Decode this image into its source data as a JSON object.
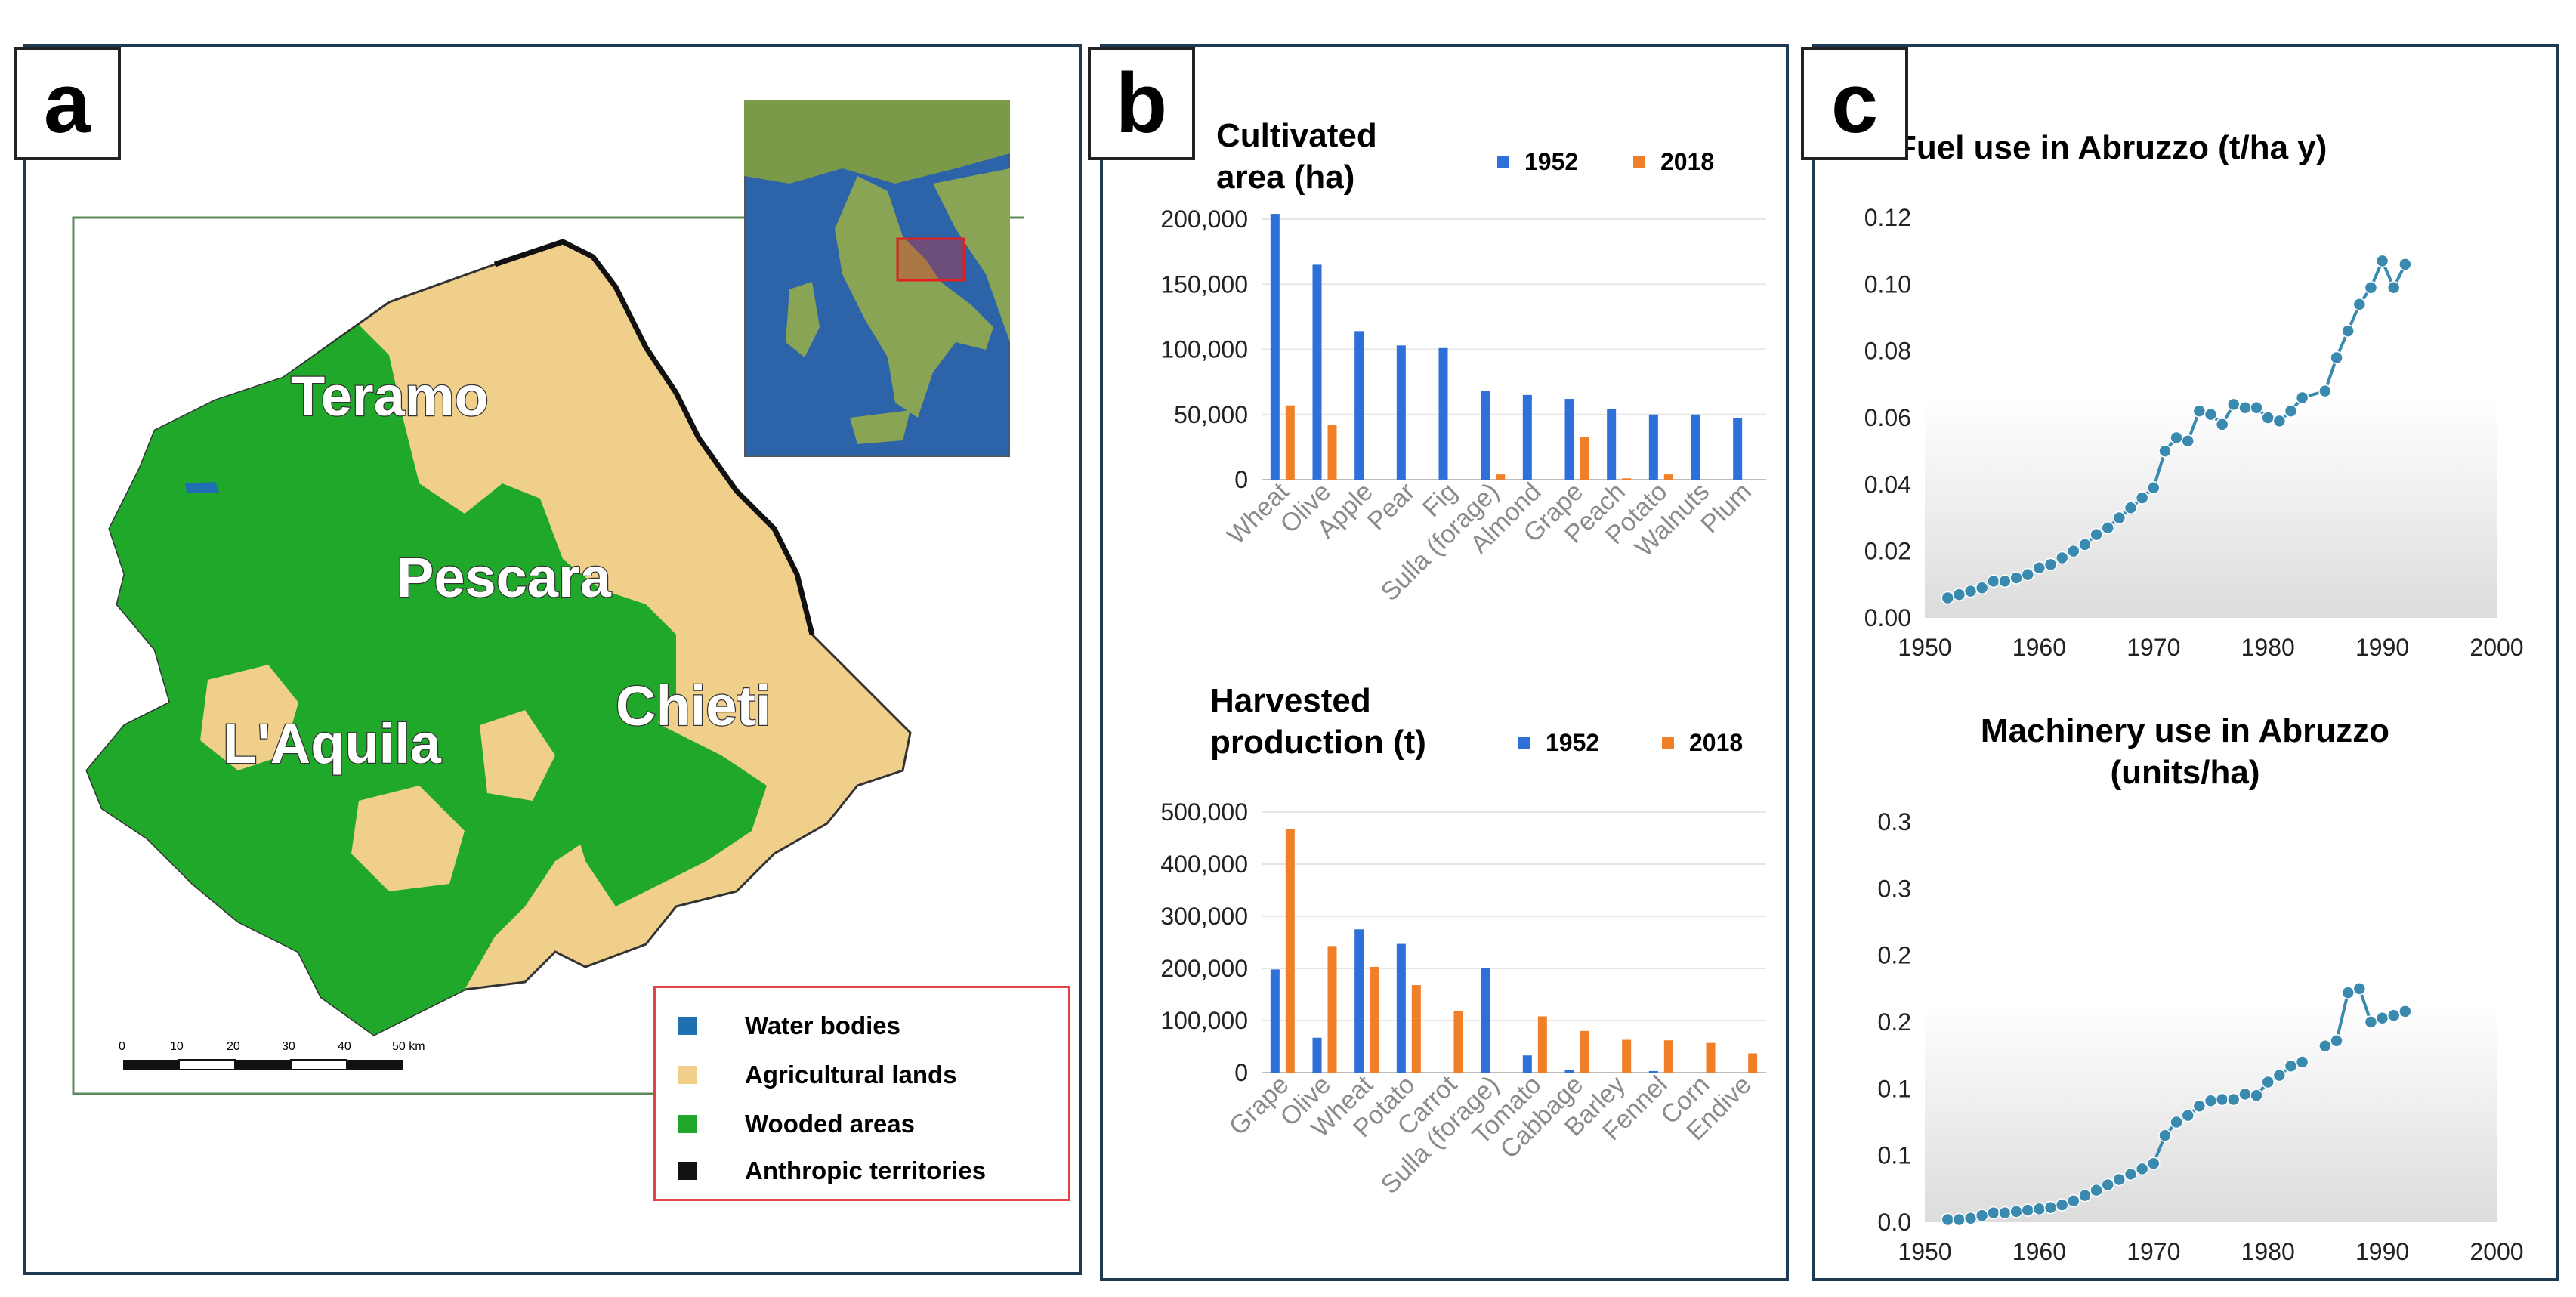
{
  "panels": {
    "a": {
      "label": "a",
      "cities": [
        "Teramo",
        "Pescara",
        "L'Aquila",
        "Chieti"
      ],
      "scale_ticks": [
        "0",
        "10",
        "20",
        "30",
        "40",
        "50 km"
      ],
      "legend": [
        {
          "label": "Water bodies",
          "color": "#1f6fb2"
        },
        {
          "label": "Agricultural lands",
          "color": "#f0cf8a"
        },
        {
          "label": "Wooded areas",
          "color": "#1fa82a"
        },
        {
          "label": "Anthropic territories",
          "color": "#111111"
        }
      ]
    },
    "b": {
      "label": "b",
      "top_title": [
        "Cultivated",
        "area (ha)"
      ],
      "bottom_title": [
        "Harvested",
        "production (t)"
      ],
      "series_labels": [
        "1952",
        "2018"
      ],
      "colors": {
        "s1952": "#2e6fd8",
        "s2018": "#f07f2a"
      }
    },
    "c": {
      "label": "c",
      "top_title": "Fuel use in Abruzzo  (t/ha y)",
      "bottom_title": [
        "Machinery use in Abruzzo",
        "(units/ha)"
      ],
      "line_color": "#3a8ab0"
    }
  },
  "chart_data": [
    {
      "type": "bar",
      "title": "Cultivated area (ha)",
      "categories": [
        "Wheat",
        "Olive",
        "Apple",
        "Pear",
        "Fig",
        "Sulla (forage)",
        "Almond",
        "Grape",
        "Peach",
        "Potato",
        "Walnuts",
        "Plum"
      ],
      "series": [
        {
          "name": "1952",
          "values": [
            204000,
            165000,
            114000,
            103000,
            101000,
            68000,
            65000,
            62000,
            54000,
            50000,
            50000,
            47000
          ]
        },
        {
          "name": "2018",
          "values": [
            57000,
            42000,
            0,
            0,
            0,
            4000,
            0,
            33000,
            1000,
            4000,
            0,
            0
          ]
        }
      ],
      "ylim": [
        0,
        200000
      ],
      "yticks": [
        "0",
        "50,000",
        "100,000",
        "150,000",
        "200,000"
      ],
      "ytick_values": [
        0,
        50000,
        100000,
        150000,
        200000
      ],
      "legend": "top-right"
    },
    {
      "type": "bar",
      "title": "Harvested production (t)",
      "categories": [
        "Grape",
        "Olive",
        "Wheat",
        "Potato",
        "Carrot",
        "Sulla (forage)",
        "Tomato",
        "Cabbage",
        "Barley",
        "Fennel",
        "Corn",
        "Endive"
      ],
      "series": [
        {
          "name": "1952",
          "values": [
            198000,
            67000,
            275000,
            247000,
            0,
            200000,
            33000,
            5000,
            0,
            3000,
            0,
            0
          ]
        },
        {
          "name": "2018",
          "values": [
            468000,
            243000,
            203000,
            168000,
            118000,
            0,
            108000,
            80000,
            63000,
            62000,
            57000,
            37000
          ]
        }
      ],
      "ylim": [
        0,
        500000
      ],
      "yticks": [
        "0",
        "100,000",
        "200,000",
        "300,000",
        "400,000",
        "500,000"
      ],
      "ytick_values": [
        0,
        100000,
        200000,
        300000,
        400000,
        500000
      ],
      "legend": "top-right"
    },
    {
      "type": "line",
      "title": "Fuel use in Abruzzo  (t/ha y)",
      "xlim": [
        1950,
        2000
      ],
      "ylim": [
        0,
        0.12
      ],
      "xticks": [
        "1950",
        "1960",
        "1970",
        "1980",
        "1990",
        "2000"
      ],
      "xtick_values": [
        1950,
        1960,
        1970,
        1980,
        1990,
        2000
      ],
      "yticks": [
        "0.00",
        "0.02",
        "0.04",
        "0.06",
        "0.08",
        "0.10",
        "0.12"
      ],
      "ytick_values": [
        0,
        0.02,
        0.04,
        0.06,
        0.08,
        0.1,
        0.12
      ],
      "series": [
        {
          "name": "Fuel use",
          "segments": [
            {
              "x": [
                1952,
                1953,
                1954,
                1955,
                1956,
                1957,
                1958,
                1959,
                1960,
                1961,
                1962,
                1963,
                1964,
                1965,
                1966,
                1967,
                1968,
                1969,
                1970,
                1971,
                1972,
                1973,
                1974,
                1975,
                1976,
                1977,
                1978,
                1979,
                1980,
                1981,
                1982
              ],
              "y": [
                0.006,
                0.007,
                0.008,
                0.009,
                0.011,
                0.011,
                0.012,
                0.013,
                0.015,
                0.016,
                0.018,
                0.02,
                0.022,
                0.025,
                0.027,
                0.03,
                0.033,
                0.036,
                0.039,
                0.05,
                0.054,
                0.053,
                0.062,
                0.061,
                0.058,
                0.064,
                0.063,
                0.063,
                0.06,
                0.059,
                0.062
              ]
            },
            {
              "x": [
                1982,
                1983,
                1985,
                1986,
                1987,
                1988,
                1989,
                1990,
                1991,
                1992
              ],
              "y": [
                0.062,
                0.066,
                0.068,
                0.078,
                0.086,
                0.094,
                0.099,
                0.107,
                0.099,
                0.106
              ]
            }
          ]
        }
      ]
    },
    {
      "type": "line",
      "title": "Machinery use in Abruzzo (units/ha)",
      "xlim": [
        1950,
        2000
      ],
      "ylim": [
        0,
        0.3
      ],
      "xticks": [
        "1950",
        "1960",
        "1970",
        "1980",
        "1990",
        "2000"
      ],
      "xtick_values": [
        1950,
        1960,
        1970,
        1980,
        1990,
        2000
      ],
      "yticks": [
        "0.0",
        "0.1",
        "0.1",
        "0.2",
        "0.2",
        "0.3",
        "0.3"
      ],
      "ytick_values": [
        0,
        0.05,
        0.1,
        0.15,
        0.2,
        0.25,
        0.3
      ],
      "series": [
        {
          "name": "Machinery use",
          "segments": [
            {
              "x": [
                1952,
                1953,
                1954,
                1955,
                1956,
                1957,
                1958,
                1959,
                1960,
                1961,
                1962,
                1963,
                1964,
                1965,
                1966,
                1967,
                1968,
                1969,
                1970,
                1971,
                1972,
                1973,
                1974,
                1975,
                1976,
                1977,
                1978,
                1979,
                1980,
                1981,
                1982,
                1983
              ],
              "y": [
                0.002,
                0.002,
                0.003,
                0.005,
                0.007,
                0.007,
                0.008,
                0.009,
                0.01,
                0.011,
                0.013,
                0.016,
                0.02,
                0.024,
                0.028,
                0.032,
                0.036,
                0.04,
                0.044,
                0.065,
                0.075,
                0.08,
                0.087,
                0.091,
                0.092,
                0.092,
                0.096,
                0.095,
                0.105,
                0.11,
                0.117,
                0.12
              ]
            },
            {
              "x": [
                1985,
                1986,
                1987,
                1988,
                1989,
                1990,
                1991,
                1992
              ],
              "y": [
                0.132,
                0.136,
                0.172,
                0.175,
                0.15,
                0.153,
                0.155,
                0.158
              ]
            }
          ]
        }
      ]
    }
  ]
}
